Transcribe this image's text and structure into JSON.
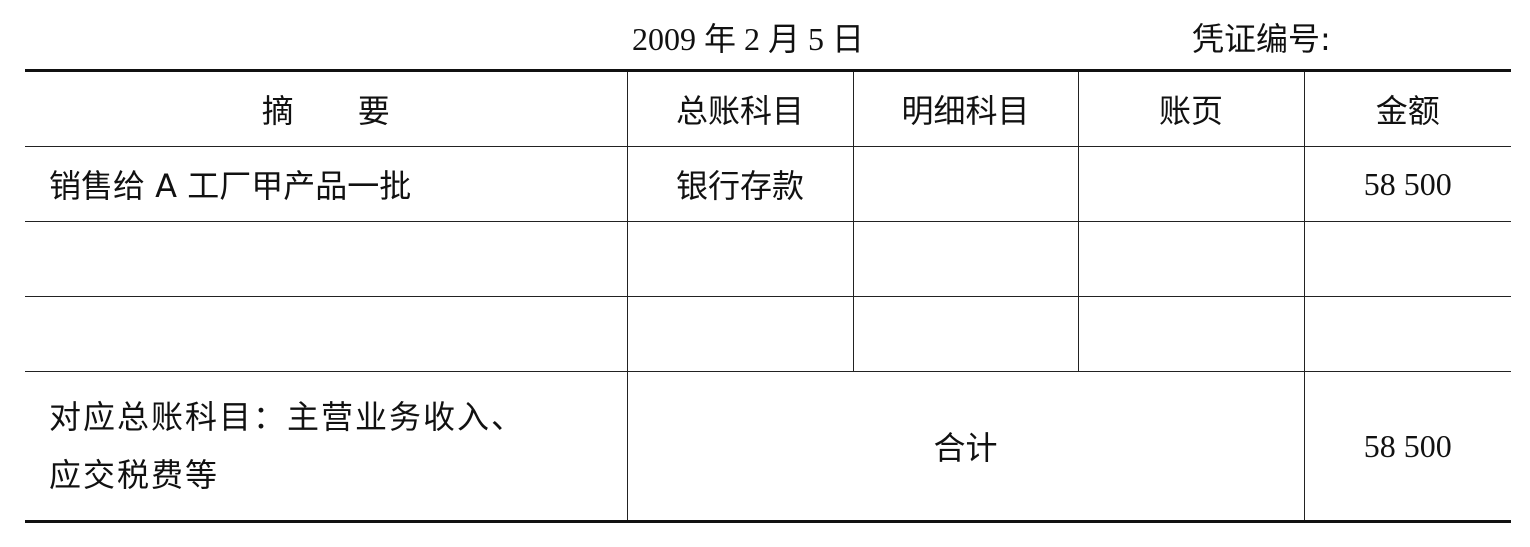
{
  "header": {
    "date": "2009 年 2 月 5 日",
    "voucher_no_label": "凭证编号:"
  },
  "table": {
    "columns": [
      "摘　　要",
      "总账科目",
      "明细科目",
      "账页",
      "金额"
    ],
    "rows": [
      {
        "summary": "销售给 A 工厂甲产品一批",
        "general_account": "银行存款",
        "detail_account": "",
        "page": "",
        "amount": "58 500"
      },
      {
        "summary": "",
        "general_account": "",
        "detail_account": "",
        "page": "",
        "amount": ""
      },
      {
        "summary": "",
        "general_account": "",
        "detail_account": "",
        "page": "",
        "amount": ""
      }
    ],
    "footer": {
      "contra_line1": "对应总账科目：主营业务收入、",
      "contra_line2": "应交税费等",
      "total_label": "合计",
      "total_amount": "58 500"
    }
  }
}
